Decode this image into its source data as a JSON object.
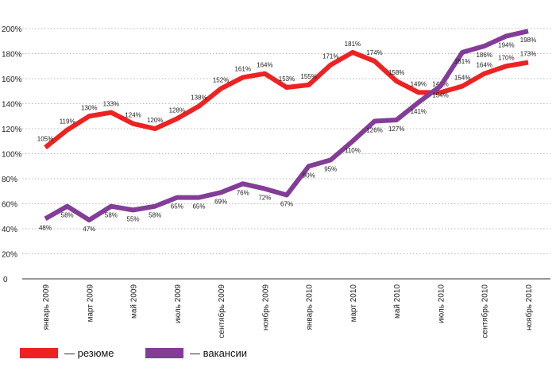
{
  "chart_data": {
    "type": "line",
    "title": "",
    "xlabel": "",
    "ylabel": "",
    "ylim": [
      0,
      200
    ],
    "yticks": [
      "0",
      "20%",
      "40%",
      "60%",
      "80%",
      "100%",
      "120%",
      "140%",
      "160%",
      "180%",
      "200%"
    ],
    "x": [
      "январь 2009",
      "февраль 2009",
      "март 2009",
      "апрель 2009",
      "май 2009",
      "июнь 2009",
      "июль 2009",
      "август 2009",
      "сентябрь 2009",
      "октябрь 2009",
      "ноябрь 2009",
      "декабрь 2009",
      "январь 2010",
      "февраль 2010",
      "март 2010",
      "апрель 2010",
      "май 2010",
      "июнь 2010",
      "июль 2010",
      "август 2010",
      "сентябрь 2010",
      "октябрь 2010",
      "ноябрь 2010"
    ],
    "xtick_labels": [
      "январь 2009",
      "март 2009",
      "май 2009",
      "июль 2009",
      "сентябрь 2009",
      "ноябрь 2009",
      "январь 2010",
      "март 2010",
      "май 2010",
      "июль 2010",
      "сентябрь 2010",
      "ноябрь 2010"
    ],
    "grid": true,
    "legend_placement": "bottom-left",
    "series": [
      {
        "name": "— резюме",
        "color": "#ee2222",
        "values": [
          105,
          119,
          130,
          133,
          124,
          120,
          128,
          138,
          152,
          161,
          164,
          153,
          155,
          171,
          181,
          174,
          158,
          149,
          149,
          154,
          164,
          170,
          173
        ]
      },
      {
        "name": "— вакансии",
        "color": "#833d97",
        "values": [
          48,
          58,
          47,
          58,
          55,
          58,
          65,
          65,
          69,
          76,
          72,
          67,
          90,
          95,
          110,
          126,
          127,
          141,
          154,
          181,
          186,
          194,
          198
        ]
      }
    ]
  }
}
